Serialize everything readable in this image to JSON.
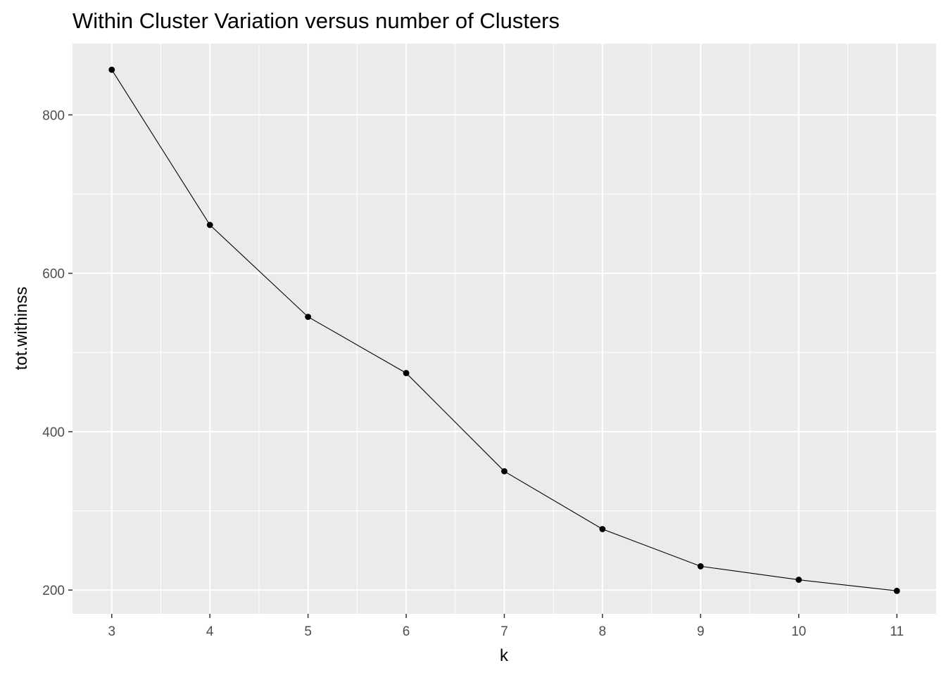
{
  "chart_data": {
    "type": "line",
    "title": "Within Cluster Variation versus number of Clusters",
    "xlabel": "k",
    "ylabel": "tot.withinss",
    "x": [
      3,
      4,
      5,
      6,
      7,
      8,
      9,
      10,
      11
    ],
    "series": [
      {
        "values": [
          857,
          661,
          545,
          474,
          350,
          277,
          230,
          213,
          199
        ]
      }
    ],
    "xlim": [
      2.6,
      11.4
    ],
    "ylim": [
      170,
      890
    ],
    "x_ticks": [
      "3",
      "4",
      "5",
      "6",
      "7",
      "8",
      "9",
      "10",
      "11"
    ],
    "y_ticks": [
      200,
      400,
      600,
      800
    ],
    "y_tick_labels": [
      "200",
      "400",
      "600",
      "800"
    ],
    "grid": true,
    "colors": {
      "panel_background": "#ebebeb",
      "grid_major": "#ffffff",
      "line": "#000000",
      "point": "#000000",
      "tick_text": "#4d4d4d",
      "tick_mark": "#333333"
    }
  }
}
